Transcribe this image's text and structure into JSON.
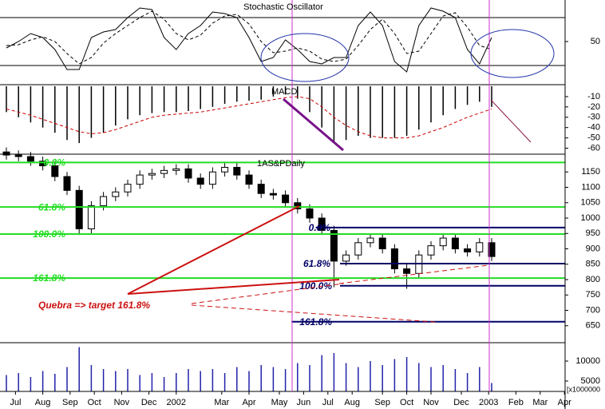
{
  "chart_data": [
    {
      "type": "line",
      "title": "Stochastic Oscillator",
      "x": [
        0,
        2,
        4,
        6,
        8,
        10,
        12,
        14,
        16,
        18,
        20,
        22,
        24,
        26,
        28,
        30,
        32,
        34,
        36,
        38,
        40,
        42,
        44,
        46,
        48,
        50,
        52,
        54,
        56,
        58,
        60,
        62,
        64,
        66,
        68,
        70,
        72,
        74,
        76,
        78,
        80
      ],
      "series": [
        {
          "color": "#000000",
          "style": "solid",
          "values": [
            42,
            50,
            60,
            55,
            40,
            15,
            15,
            55,
            62,
            65,
            80,
            92,
            90,
            55,
            40,
            60,
            70,
            87,
            85,
            80,
            55,
            25,
            30,
            52,
            40,
            25,
            22,
            30,
            30,
            70,
            87,
            70,
            25,
            12,
            70,
            92,
            88,
            80,
            40,
            22,
            55
          ]
        },
        {
          "color": "#000000",
          "style": "dashed",
          "values": [
            45,
            46,
            52,
            56,
            50,
            35,
            22,
            30,
            48,
            60,
            70,
            80,
            88,
            78,
            60,
            52,
            58,
            73,
            82,
            84,
            72,
            50,
            36,
            38,
            42,
            38,
            28,
            25,
            28,
            45,
            65,
            78,
            60,
            35,
            38,
            60,
            82,
            86,
            68,
            45,
            40
          ]
        }
      ],
      "ylim": [
        0,
        100
      ],
      "yticks": [
        50
      ],
      "hlines": [
        20,
        80
      ]
    },
    {
      "type": "bar",
      "title": "MACD",
      "x": [
        0,
        2,
        4,
        6,
        8,
        10,
        12,
        14,
        16,
        18,
        20,
        22,
        24,
        26,
        28,
        30,
        32,
        34,
        36,
        38,
        40,
        42,
        44,
        46,
        48,
        50,
        52,
        54,
        56,
        58,
        60,
        62,
        64,
        66,
        68,
        70,
        72,
        74,
        76,
        78,
        80
      ],
      "series": [
        {
          "kind": "bar",
          "color": "#000000",
          "values": [
            -25,
            -30,
            -35,
            -40,
            -45,
            -52,
            -55,
            -50,
            -45,
            -38,
            -32,
            -28,
            -26,
            -25,
            -25,
            -24,
            -22,
            -20,
            -17,
            -15,
            -14,
            -13,
            -10,
            -8,
            -12,
            -25,
            -40,
            -55,
            -52,
            -48,
            -50,
            -50,
            -50,
            -48,
            -42,
            -35,
            -28,
            -22,
            -18,
            -15,
            -20
          ]
        },
        {
          "kind": "line",
          "color": "#cc0000",
          "style": "dashed",
          "values": [
            -22,
            -25,
            -28,
            -32,
            -36,
            -40,
            -44,
            -46,
            -45,
            -42,
            -38,
            -34,
            -30,
            -28,
            -27,
            -26,
            -25,
            -23,
            -21,
            -19,
            -17,
            -15,
            -13,
            -11,
            -10,
            -12,
            -20,
            -30,
            -38,
            -44,
            -48,
            -50,
            -50,
            -50,
            -48,
            -44,
            -40,
            -35,
            -30,
            -26,
            -22
          ]
        }
      ],
      "ylim": [
        -65,
        0
      ],
      "yticks": [
        -10,
        -20,
        -30,
        -40,
        -50,
        -60
      ]
    },
    {
      "type": "candlestick",
      "title": "1AS&PDaily",
      "x": [
        0,
        2,
        4,
        6,
        8,
        10,
        12,
        14,
        16,
        18,
        20,
        22,
        24,
        26,
        28,
        30,
        32,
        34,
        36,
        38,
        40,
        42,
        44,
        46,
        48,
        50,
        52,
        54,
        56,
        58,
        60,
        62,
        64,
        66,
        68,
        70,
        72,
        74,
        76,
        78,
        80
      ],
      "open": [
        1215,
        1205,
        1200,
        1185,
        1170,
        1135,
        1090,
        965,
        1040,
        1070,
        1085,
        1110,
        1140,
        1145,
        1155,
        1160,
        1130,
        1110,
        1150,
        1165,
        1140,
        1110,
        1080,
        1075,
        1050,
        1030,
        1000,
        960,
        860,
        880,
        920,
        935,
        900,
        835,
        820,
        880,
        910,
        935,
        900,
        890,
        920
      ],
      "high": [
        1230,
        1220,
        1215,
        1200,
        1185,
        1150,
        1105,
        1055,
        1085,
        1100,
        1125,
        1155,
        1160,
        1170,
        1175,
        1175,
        1145,
        1165,
        1180,
        1180,
        1155,
        1125,
        1095,
        1090,
        1065,
        1045,
        1015,
        975,
        895,
        935,
        950,
        950,
        915,
        850,
        895,
        925,
        950,
        950,
        915,
        935,
        935
      ],
      "low": [
        1190,
        1185,
        1170,
        1155,
        1120,
        1075,
        945,
        950,
        1025,
        1055,
        1070,
        1095,
        1125,
        1130,
        1140,
        1115,
        1095,
        1095,
        1135,
        1125,
        1095,
        1065,
        1060,
        1035,
        1015,
        985,
        945,
        775,
        845,
        865,
        905,
        885,
        820,
        770,
        805,
        865,
        895,
        885,
        875,
        875,
        860
      ],
      "close": [
        1205,
        1200,
        1185,
        1170,
        1135,
        1090,
        965,
        1040,
        1070,
        1085,
        1110,
        1140,
        1145,
        1155,
        1160,
        1130,
        1110,
        1150,
        1165,
        1140,
        1110,
        1080,
        1075,
        1050,
        1030,
        1000,
        960,
        860,
        880,
        920,
        935,
        900,
        835,
        820,
        880,
        910,
        935,
        900,
        890,
        920,
        875
      ],
      "ylim": [
        600,
        1200
      ],
      "yticks": [
        650,
        700,
        750,
        800,
        850,
        900,
        950,
        1000,
        1050,
        1100,
        1150
      ],
      "fib_green": {
        "color": "#22dd22",
        "levels": [
          {
            "value": 1181,
            "label": "0.0%"
          },
          {
            "value": 1036,
            "label": "61.8%"
          },
          {
            "value": 948,
            "label": "100.0%"
          },
          {
            "value": 805,
            "label": "161.8%"
          }
        ]
      },
      "fib_navy": {
        "color": "#000066",
        "start": [
          51,
          55,
          55,
          47
        ],
        "levels": [
          {
            "value": 969,
            "label": "0.0%"
          },
          {
            "value": 852,
            "label": "61.8%"
          },
          {
            "value": 780,
            "label": "100.0%"
          },
          {
            "value": 663,
            "label": "161.8%"
          }
        ]
      },
      "annotation": "Quebra => target 161.8%"
    },
    {
      "type": "bar",
      "unit_label": "[x1000000",
      "x": [
        0,
        2,
        4,
        6,
        8,
        10,
        12,
        14,
        16,
        18,
        20,
        22,
        24,
        26,
        28,
        30,
        32,
        34,
        36,
        38,
        40,
        42,
        44,
        46,
        48,
        50,
        52,
        54,
        56,
        58,
        60,
        62,
        64,
        66,
        68,
        70,
        72,
        74,
        76,
        78,
        80
      ],
      "series": [
        {
          "kind": "bar",
          "color": "#2222aa",
          "values": [
            6500,
            7000,
            6000,
            7500,
            6800,
            8500,
            13500,
            9000,
            8000,
            7500,
            8000,
            6500,
            7000,
            6000,
            7000,
            8000,
            7500,
            8000,
            7000,
            8500,
            7500,
            9000,
            8500,
            8000,
            9500,
            9000,
            11500,
            12000,
            9500,
            8500,
            10000,
            9000,
            10500,
            11000,
            9500,
            8500,
            9000,
            8000,
            7000,
            8500,
            4500
          ]
        }
      ],
      "ylim": [
        2400,
        14400
      ],
      "yticks": [
        5000,
        10000
      ],
      "xticks": [
        {
          "value": 1.5,
          "label": "Jul"
        },
        {
          "value": 6,
          "label": "Aug"
        },
        {
          "value": 10.5,
          "label": "Sep"
        },
        {
          "value": 14.5,
          "label": "Oct"
        },
        {
          "value": 19,
          "label": "Nov"
        },
        {
          "value": 23.5,
          "label": "Dec"
        },
        {
          "value": 28,
          "label": "2002"
        },
        {
          "value": 35.5,
          "label": "Mar"
        },
        {
          "value": 40,
          "label": "Apr"
        },
        {
          "value": 45,
          "label": "May"
        },
        {
          "value": 49,
          "label": "Jun"
        },
        {
          "value": 53,
          "label": "Jul"
        },
        {
          "value": 57,
          "label": "Aug"
        },
        {
          "value": 62,
          "label": "Sep"
        },
        {
          "value": 66,
          "label": "Oct"
        },
        {
          "value": 70,
          "label": "Nov"
        },
        {
          "value": 75,
          "label": "Dec"
        },
        {
          "value": 79.5,
          "label": "2003"
        },
        {
          "value": 84,
          "label": "Feb"
        },
        {
          "value": 88,
          "label": "Mar"
        },
        {
          "value": 92,
          "label": "Apr"
        }
      ]
    }
  ]
}
